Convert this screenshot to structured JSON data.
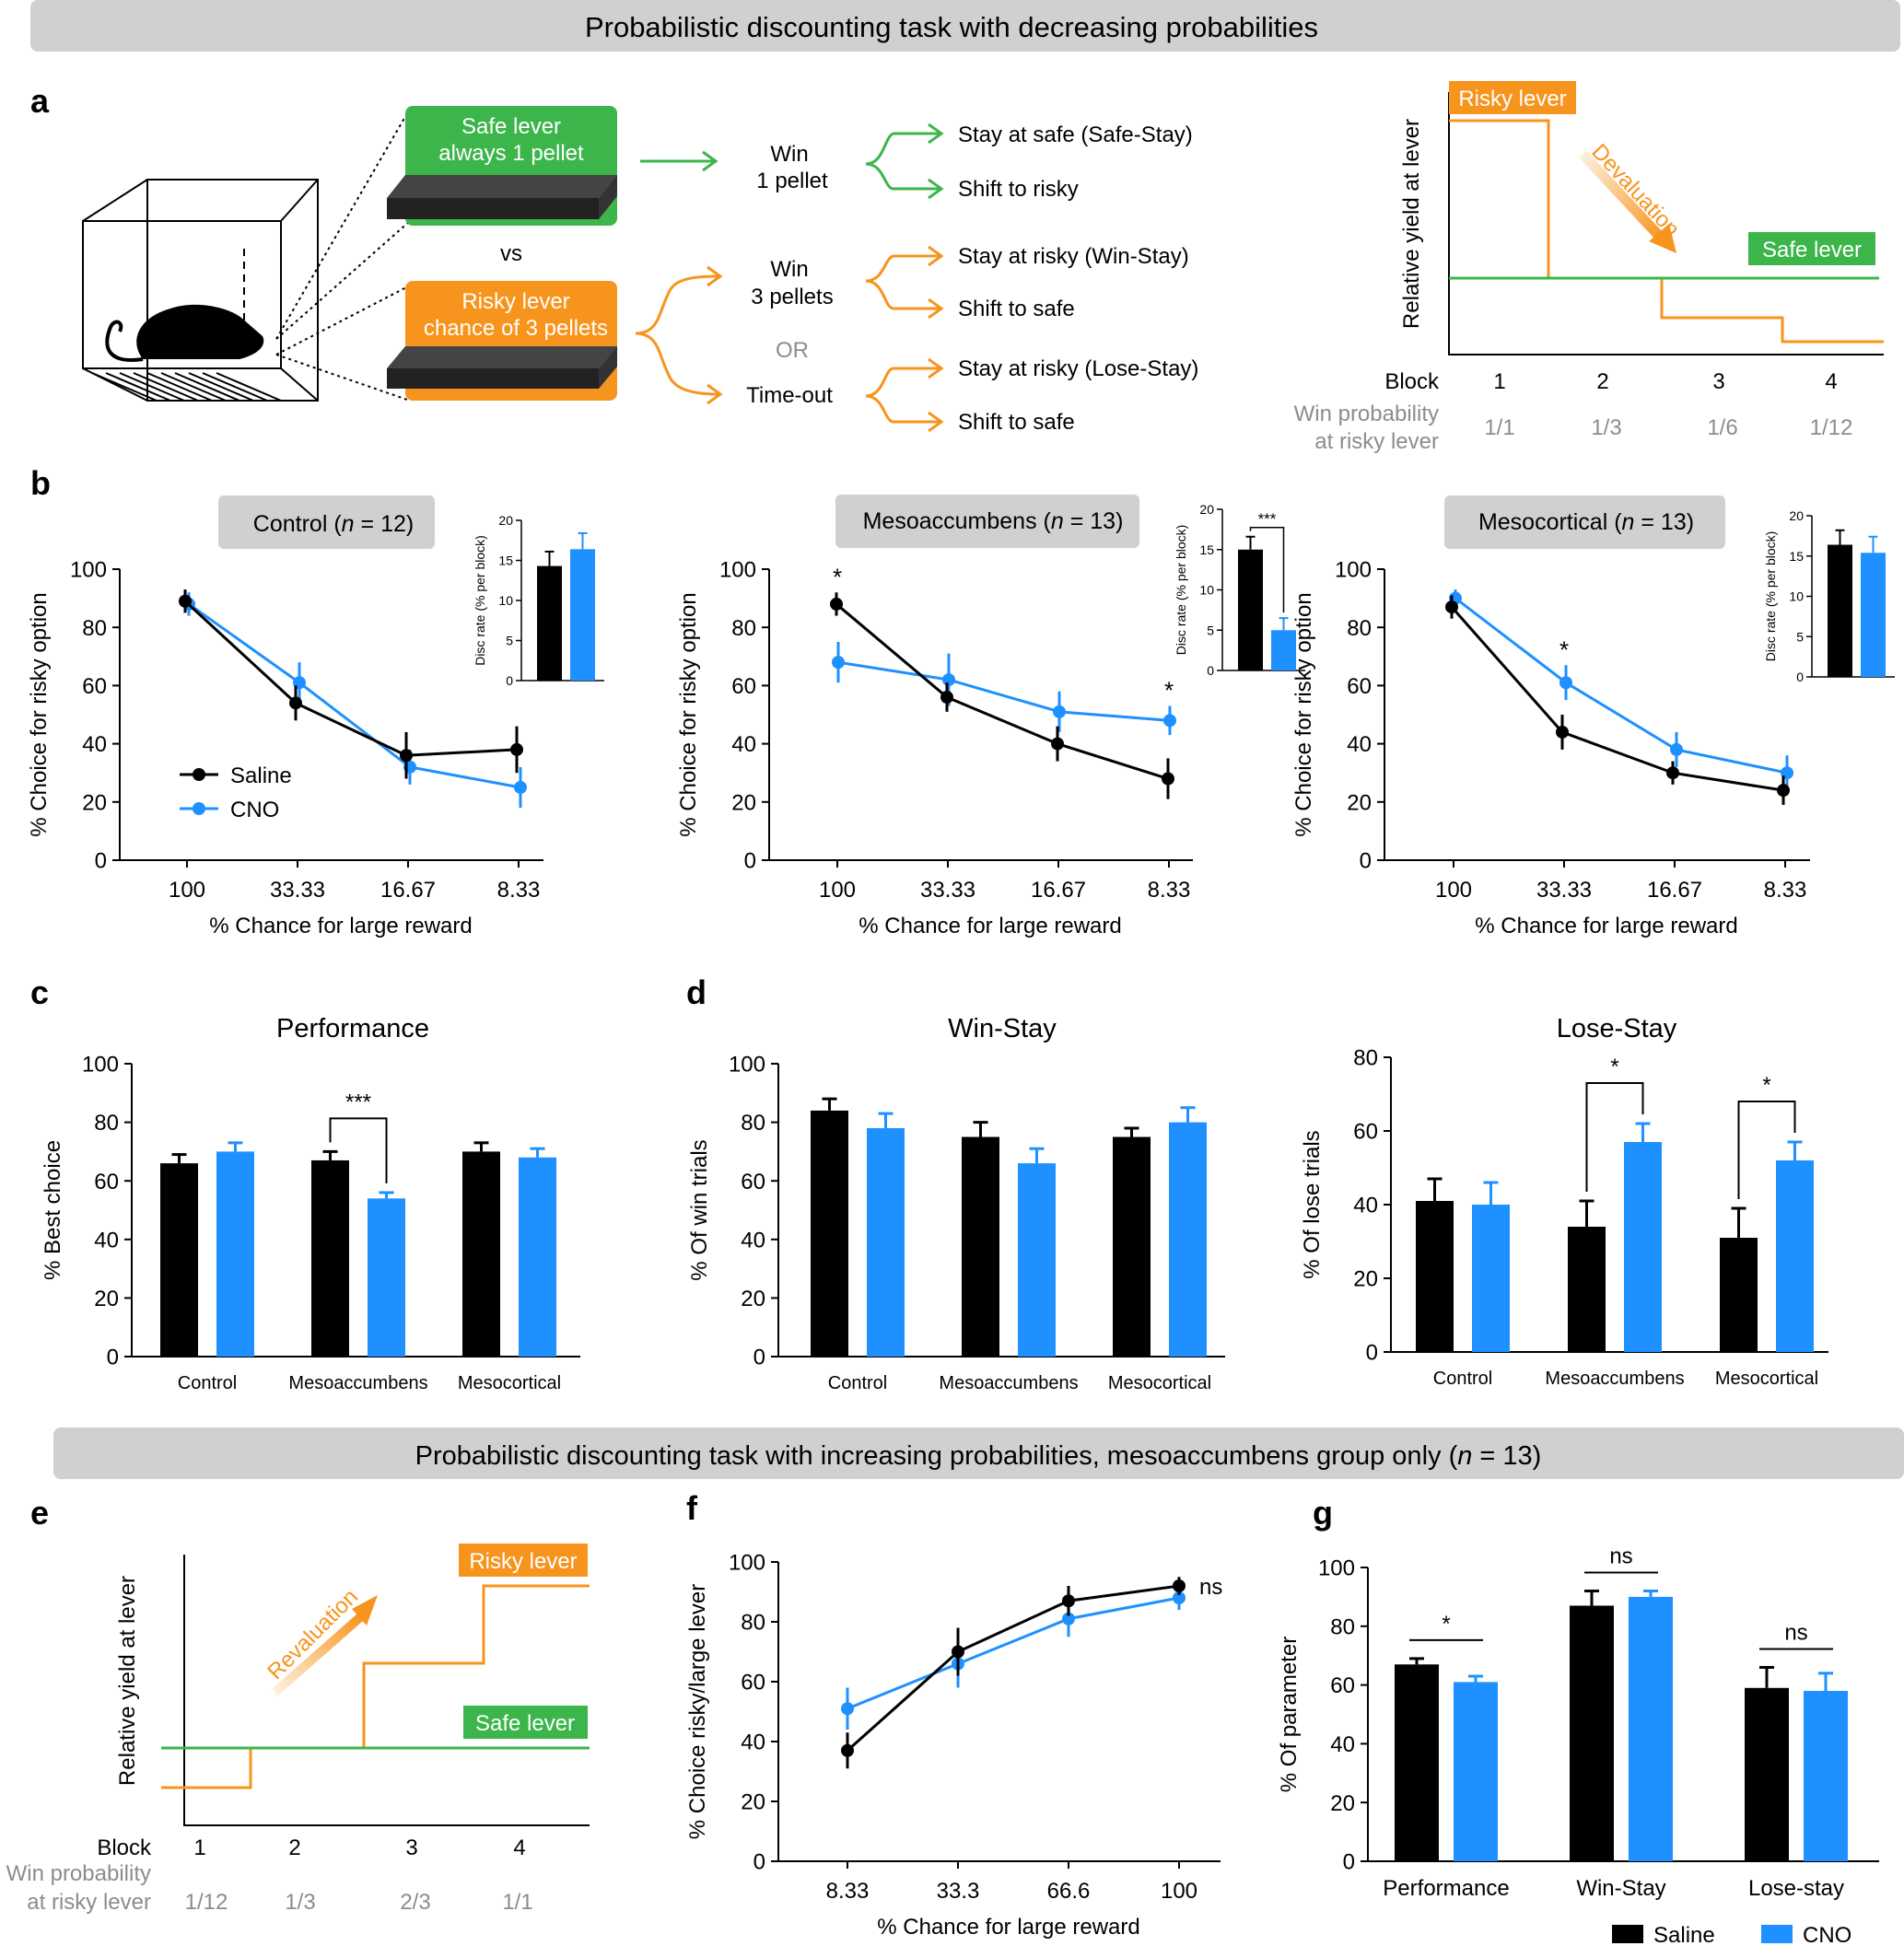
{
  "colors": {
    "saline": "#000000",
    "cno": "#1e90ff",
    "green": "#3cb54a",
    "orange": "#f7941d",
    "banner": "#d0d0d0",
    "grey_text": "#8c8c8c"
  },
  "banner_top": "Probabilistic discounting task with decreasing probabilities",
  "banner_mid": {
    "pre": "Probabilistic discounting task with increasing probabilities, mesoaccumbens group only (",
    "n": "n",
    "post": " = 13)"
  },
  "panel_labels": {
    "a": "a",
    "b": "b",
    "c": "c",
    "d": "d",
    "e": "e",
    "f": "f",
    "g": "g"
  },
  "panel_a": {
    "safe_box": [
      "Safe lever",
      "always 1 pellet"
    ],
    "vs": "vs",
    "risky_box": [
      "Risky lever",
      "chance of 3 pellets"
    ],
    "win1": [
      "Win",
      "1 pellet"
    ],
    "win3": [
      "Win",
      "3 pellets"
    ],
    "or": "OR",
    "timeout": "Time-out",
    "outcomes": [
      "Stay at safe (Safe-Stay)",
      "Shift to risky",
      "Stay at risky (Win-Stay)",
      "Shift to safe",
      "Stay at risky (Lose-Stay)",
      "Shift to safe"
    ],
    "yield": {
      "risky_label": "Risky lever",
      "safe_label": "Safe lever",
      "arrow_label": "Devaluation",
      "ylabel": "Relative yield at lever",
      "block_label": "Block",
      "blocks": [
        "1",
        "2",
        "3",
        "4"
      ],
      "win_prob_label": [
        "Win probability",
        "at risky lever"
      ],
      "probs": [
        "1/1",
        "1/3",
        "1/6",
        "1/12"
      ]
    }
  },
  "panel_e": {
    "risky_label": "Risky lever",
    "safe_label": "Safe lever",
    "arrow_label": "Revaluation",
    "ylabel": "Relative yield at lever",
    "block_label": "Block",
    "blocks": [
      "1",
      "2",
      "3",
      "4"
    ],
    "win_prob_label": [
      "Win probability",
      "at risky lever"
    ],
    "probs": [
      "1/12",
      "1/3",
      "2/3",
      "1/1"
    ]
  },
  "chart_data": [
    {
      "id": "b1",
      "type": "line",
      "title": "Control (n = 12)",
      "title_pre": "Control (",
      "title_n": "n",
      "title_post": " = 12)",
      "categories": [
        "100",
        "33.33",
        "16.67",
        "8.33"
      ],
      "series": [
        {
          "name": "Saline",
          "values": [
            89,
            54,
            36,
            38
          ],
          "errors": [
            4,
            6,
            8,
            8
          ]
        },
        {
          "name": "CNO",
          "values": [
            88,
            61,
            32,
            25
          ],
          "errors": [
            4,
            7,
            6,
            7
          ]
        }
      ],
      "ylim": [
        0,
        100
      ],
      "yticks": [
        0,
        20,
        40,
        60,
        80,
        100
      ],
      "xlabel": "% Chance for large reward",
      "ylabel": "% Choice for risky option",
      "legend": [
        "Saline",
        "CNO"
      ],
      "legend_position": "bottom-left",
      "inset": {
        "type": "bar",
        "ylabel": "Disc rate (% per block)",
        "values": [
          14.3,
          16.4
        ],
        "errors": [
          1.8,
          2.0
        ],
        "ylim": [
          0,
          20
        ],
        "yticks": [
          0,
          5,
          10,
          15,
          20
        ],
        "sig": ""
      },
      "annotations": []
    },
    {
      "id": "b2",
      "type": "line",
      "title": "Mesoaccumbens (n = 13)",
      "title_pre": "Mesoaccumbens (",
      "title_n": "n",
      "title_post": " = 13)",
      "categories": [
        "100",
        "33.33",
        "16.67",
        "8.33"
      ],
      "series": [
        {
          "name": "Saline",
          "values": [
            88,
            56,
            40,
            28
          ],
          "errors": [
            4,
            5,
            6,
            7
          ]
        },
        {
          "name": "CNO",
          "values": [
            68,
            62,
            51,
            48
          ],
          "errors": [
            7,
            9,
            7,
            5
          ]
        }
      ],
      "ylim": [
        0,
        100
      ],
      "yticks": [
        0,
        20,
        40,
        60,
        80,
        100
      ],
      "xlabel": "% Chance for large reward",
      "ylabel": "% Choice for risky option",
      "inset": {
        "type": "bar",
        "ylabel": "Disc rate (% per block)",
        "values": [
          15,
          5
        ],
        "errors": [
          1.6,
          1.5
        ],
        "ylim": [
          0,
          20
        ],
        "yticks": [
          0,
          5,
          10,
          15,
          20
        ],
        "sig": "***"
      },
      "annotations": [
        {
          "text": "*",
          "category": "100"
        },
        {
          "text": "*",
          "category": "8.33"
        }
      ]
    },
    {
      "id": "b3",
      "type": "line",
      "title": "Mesocortical (n = 13)",
      "title_pre": "Mesocortical (",
      "title_n": "n",
      "title_post": " = 13)",
      "categories": [
        "100",
        "33.33",
        "16.67",
        "8.33"
      ],
      "series": [
        {
          "name": "Saline",
          "values": [
            87,
            44,
            30,
            24
          ],
          "errors": [
            4,
            6,
            4,
            5
          ]
        },
        {
          "name": "CNO",
          "values": [
            90,
            61,
            38,
            30
          ],
          "errors": [
            3,
            6,
            6,
            6
          ]
        }
      ],
      "ylim": [
        0,
        100
      ],
      "yticks": [
        0,
        20,
        40,
        60,
        80,
        100
      ],
      "xlabel": "% Chance for large reward",
      "ylabel": "% Choice for risky option",
      "inset": {
        "type": "bar",
        "ylabel": "Disc rate (% per block)",
        "values": [
          16.4,
          15.4
        ],
        "errors": [
          1.8,
          2.0
        ],
        "ylim": [
          0,
          20
        ],
        "yticks": [
          0,
          5,
          10,
          15,
          20
        ],
        "sig": ""
      },
      "annotations": [
        {
          "text": "*",
          "category": "33.33"
        }
      ]
    },
    {
      "id": "c",
      "type": "bar",
      "title": "Performance",
      "categories": [
        "Control",
        "Mesoaccumbens",
        "Mesocortical"
      ],
      "series": [
        {
          "name": "Saline",
          "values": [
            66,
            67,
            70
          ],
          "errors": [
            3,
            3,
            3
          ]
        },
        {
          "name": "CNO",
          "values": [
            70,
            54,
            68
          ],
          "errors": [
            3,
            2,
            3
          ]
        }
      ],
      "ylim": [
        0,
        100
      ],
      "yticks": [
        0,
        20,
        40,
        60,
        80,
        100
      ],
      "ylabel": "% Best choice",
      "significance": [
        {
          "category": "Mesoaccumbens",
          "text": "***"
        }
      ]
    },
    {
      "id": "d1",
      "type": "bar",
      "title": "Win-Stay",
      "categories": [
        "Control",
        "Mesoaccumbens",
        "Mesocortical"
      ],
      "series": [
        {
          "name": "Saline",
          "values": [
            84,
            75,
            75
          ],
          "errors": [
            4,
            5,
            3
          ]
        },
        {
          "name": "CNO",
          "values": [
            78,
            66,
            80
          ],
          "errors": [
            5,
            5,
            5
          ]
        }
      ],
      "ylim": [
        0,
        100
      ],
      "yticks": [
        0,
        20,
        40,
        60,
        80,
        100
      ],
      "ylabel": "% Of win trials",
      "significance": []
    },
    {
      "id": "d2",
      "type": "bar",
      "title": "Lose-Stay",
      "categories": [
        "Control",
        "Mesoaccumbens",
        "Mesocortical"
      ],
      "series": [
        {
          "name": "Saline",
          "values": [
            41,
            34,
            31
          ],
          "errors": [
            6,
            7,
            8
          ]
        },
        {
          "name": "CNO",
          "values": [
            40,
            57,
            52
          ],
          "errors": [
            6,
            5,
            5
          ]
        }
      ],
      "ylim": [
        0,
        80
      ],
      "yticks": [
        0,
        20,
        40,
        60,
        80
      ],
      "ylabel": "% Of lose trials",
      "significance": [
        {
          "category": "Mesoaccumbens",
          "text": "*"
        },
        {
          "category": "Mesocortical",
          "text": "*"
        }
      ]
    },
    {
      "id": "f",
      "type": "line",
      "categories": [
        "8.33",
        "33.3",
        "66.6",
        "100"
      ],
      "series": [
        {
          "name": "Saline",
          "values": [
            37,
            70,
            87,
            92
          ],
          "errors": [
            6,
            8,
            5,
            3
          ]
        },
        {
          "name": "CNO",
          "values": [
            51,
            66,
            81,
            88
          ],
          "errors": [
            7,
            8,
            6,
            4
          ]
        }
      ],
      "ylim": [
        0,
        100
      ],
      "yticks": [
        0,
        20,
        40,
        60,
        80,
        100
      ],
      "xlabel": "% Chance for large reward",
      "ylabel": "% Choice risky/large lever",
      "annotations": [
        {
          "text": "ns",
          "category": "100"
        }
      ]
    },
    {
      "id": "g",
      "type": "bar",
      "categories": [
        "Performance",
        "Win-Stay",
        "Lose-stay"
      ],
      "series": [
        {
          "name": "Saline",
          "values": [
            67,
            87,
            59
          ],
          "errors": [
            2,
            5,
            7
          ]
        },
        {
          "name": "CNO",
          "values": [
            61,
            90,
            58
          ],
          "errors": [
            2,
            2,
            6
          ]
        }
      ],
      "ylim": [
        0,
        100
      ],
      "yticks": [
        0,
        20,
        40,
        60,
        80,
        100
      ],
      "ylabel": "% Of parameter",
      "significance": [
        {
          "category": "Performance",
          "text": "*"
        },
        {
          "category": "Win-Stay",
          "text": "ns"
        },
        {
          "category": "Lose-stay",
          "text": "ns"
        }
      ],
      "legend": [
        "Saline",
        "CNO"
      ],
      "legend_position": "bottom"
    }
  ]
}
